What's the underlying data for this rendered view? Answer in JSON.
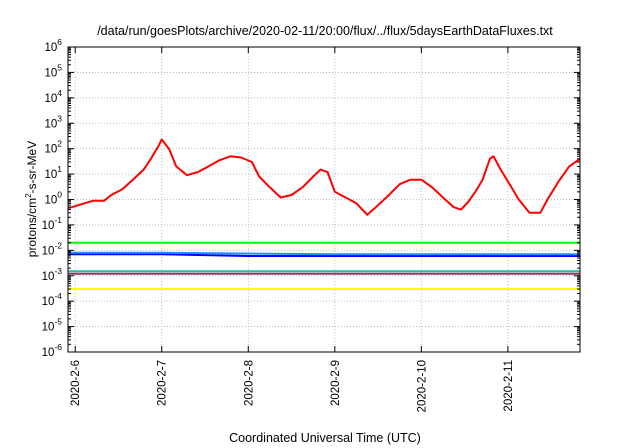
{
  "chart_data": {
    "type": "line",
    "title": "/data/run/goesPlots/archive/2020-02-11/20:00/flux/../flux/5daysEarthDataFluxes.txt",
    "xlabel": "Coordinated Universal Time (UTC)",
    "ylabel": {
      "prefix": "protons/cm",
      "sup": "2",
      "suffix": "-s-sr-MeV"
    },
    "x_unit": "days",
    "xlim": [
      "2020-02-05T22:00",
      "2020-02-11T20:00"
    ],
    "x_ticks": [
      {
        "date": "2020-02-06T00:00",
        "label": "2020-2-6"
      },
      {
        "date": "2020-02-07T00:00",
        "label": "2020-2-7"
      },
      {
        "date": "2020-02-08T00:00",
        "label": "2020-2-8"
      },
      {
        "date": "2020-02-09T00:00",
        "label": "2020-2-9"
      },
      {
        "date": "2020-02-10T00:00",
        "label": "2020-2-10"
      },
      {
        "date": "2020-02-11T00:00",
        "label": "2020-2-11"
      }
    ],
    "y_scale": "log",
    "ylim": [
      1e-06,
      1000000.0
    ],
    "y_ticks": [
      {
        "base": "10",
        "exp": "-6"
      },
      {
        "base": "10",
        "exp": "-5"
      },
      {
        "base": "10",
        "exp": "-4"
      },
      {
        "base": "10",
        "exp": "-3"
      },
      {
        "base": "10",
        "exp": "-2"
      },
      {
        "base": "10",
        "exp": "-1"
      },
      {
        "base": "10",
        "exp": "0"
      },
      {
        "base": "10",
        "exp": "1"
      },
      {
        "base": "10",
        "exp": "2"
      },
      {
        "base": "10",
        "exp": "3"
      },
      {
        "base": "10",
        "exp": "4"
      },
      {
        "base": "10",
        "exp": "5"
      },
      {
        "base": "10",
        "exp": "6"
      }
    ],
    "grid": true,
    "legend": "none",
    "series": [
      {
        "color": "#ff0000",
        "points": [
          [
            "2020-02-05T22:00",
            0.45
          ],
          [
            "2020-02-06T01:00",
            0.6
          ],
          [
            "2020-02-06T05:00",
            0.9
          ],
          [
            "2020-02-06T08:00",
            0.9
          ],
          [
            "2020-02-06T10:00",
            1.5
          ],
          [
            "2020-02-06T13:00",
            2.5
          ],
          [
            "2020-02-06T16:00",
            6
          ],
          [
            "2020-02-06T19:00",
            15
          ],
          [
            "2020-02-06T21:00",
            40
          ],
          [
            "2020-02-06T23:00",
            120
          ],
          [
            "2020-02-07T00:00",
            230
          ],
          [
            "2020-02-07T02:00",
            100
          ],
          [
            "2020-02-07T04:00",
            20
          ],
          [
            "2020-02-07T07:00",
            9
          ],
          [
            "2020-02-07T10:00",
            12
          ],
          [
            "2020-02-07T13:00",
            20
          ],
          [
            "2020-02-07T16:00",
            35
          ],
          [
            "2020-02-07T19:00",
            50
          ],
          [
            "2020-02-07T22:00",
            45
          ],
          [
            "2020-02-08T01:00",
            30
          ],
          [
            "2020-02-08T03:00",
            8
          ],
          [
            "2020-02-08T06:00",
            3
          ],
          [
            "2020-02-08T09:00",
            1.2
          ],
          [
            "2020-02-08T12:00",
            1.5
          ],
          [
            "2020-02-08T15:00",
            3
          ],
          [
            "2020-02-08T18:00",
            8
          ],
          [
            "2020-02-08T20:00",
            15
          ],
          [
            "2020-02-08T22:00",
            12
          ],
          [
            "2020-02-09T00:00",
            2
          ],
          [
            "2020-02-09T03:00",
            1.2
          ],
          [
            "2020-02-09T06:00",
            0.7
          ],
          [
            "2020-02-09T09:00",
            0.25
          ],
          [
            "2020-02-09T12:00",
            0.6
          ],
          [
            "2020-02-09T15:00",
            1.5
          ],
          [
            "2020-02-09T18:00",
            4
          ],
          [
            "2020-02-09T21:00",
            6
          ],
          [
            "2020-02-10T00:00",
            6
          ],
          [
            "2020-02-10T03:00",
            3
          ],
          [
            "2020-02-10T06:00",
            1.2
          ],
          [
            "2020-02-10T09:00",
            0.5
          ],
          [
            "2020-02-10T11:00",
            0.4
          ],
          [
            "2020-02-10T13:00",
            0.8
          ],
          [
            "2020-02-10T15:00",
            2
          ],
          [
            "2020-02-10T17:00",
            6
          ],
          [
            "2020-02-10T19:00",
            40
          ],
          [
            "2020-02-10T20:00",
            50
          ],
          [
            "2020-02-10T22:00",
            15
          ],
          [
            "2020-02-11T01:00",
            3
          ],
          [
            "2020-02-11T03:00",
            1
          ],
          [
            "2020-02-11T06:00",
            0.3
          ],
          [
            "2020-02-11T09:00",
            0.3
          ],
          [
            "2020-02-11T11:00",
            1
          ],
          [
            "2020-02-11T14:00",
            5
          ],
          [
            "2020-02-11T17:00",
            20
          ],
          [
            "2020-02-11T20:00",
            40
          ]
        ]
      },
      {
        "color": "#00ff00",
        "points": [
          [
            "2020-02-05T22:00",
            0.02
          ],
          [
            "2020-02-06T12:00",
            0.02
          ],
          [
            "2020-02-07T12:00",
            0.02
          ],
          [
            "2020-02-08T12:00",
            0.02
          ],
          [
            "2020-02-09T12:00",
            0.02
          ],
          [
            "2020-02-10T12:00",
            0.02
          ],
          [
            "2020-02-11T20:00",
            0.02
          ]
        ]
      },
      {
        "color": "#0000ff",
        "points": [
          [
            "2020-02-05T22:00",
            0.007
          ],
          [
            "2020-02-07T00:00",
            0.007
          ],
          [
            "2020-02-08T00:00",
            0.006
          ],
          [
            "2020-02-09T00:00",
            0.006
          ],
          [
            "2020-02-10T00:00",
            0.006
          ],
          [
            "2020-02-11T00:00",
            0.006
          ],
          [
            "2020-02-11T20:00",
            0.006
          ]
        ]
      },
      {
        "color": "#1e90ff",
        "points": [
          [
            "2020-02-05T22:00",
            0.008
          ],
          [
            "2020-02-07T00:00",
            0.008
          ],
          [
            "2020-02-09T00:00",
            0.007
          ],
          [
            "2020-02-11T20:00",
            0.007
          ]
        ]
      },
      {
        "color": "#20c0a0",
        "points": [
          [
            "2020-02-05T22:00",
            0.0015
          ],
          [
            "2020-02-07T12:00",
            0.0015
          ],
          [
            "2020-02-09T12:00",
            0.0015
          ],
          [
            "2020-02-11T20:00",
            0.0015
          ]
        ]
      },
      {
        "color": "#8b3a62",
        "points": [
          [
            "2020-02-05T22:00",
            0.0012
          ],
          [
            "2020-02-07T12:00",
            0.0012
          ],
          [
            "2020-02-09T12:00",
            0.0012
          ],
          [
            "2020-02-11T20:00",
            0.0012
          ]
        ]
      },
      {
        "color": "#ffff00",
        "points": [
          [
            "2020-02-05T22:00",
            0.0003
          ],
          [
            "2020-02-07T12:00",
            0.0003
          ],
          [
            "2020-02-09T12:00",
            0.0003
          ],
          [
            "2020-02-11T20:00",
            0.0003
          ]
        ]
      }
    ]
  }
}
